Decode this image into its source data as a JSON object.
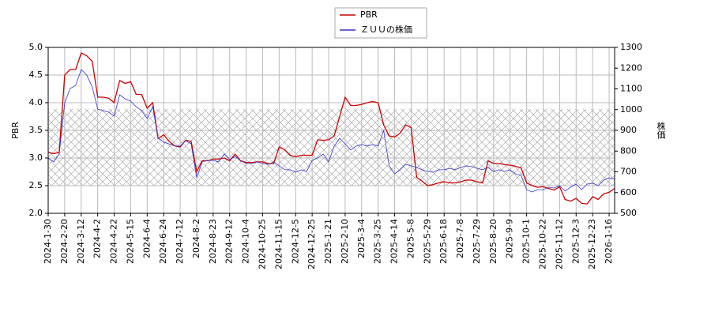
{
  "chart_data": {
    "type": "line",
    "categories": [
      "2024-1-30",
      null,
      null,
      "2024-2-20",
      null,
      null,
      "2024-3-12",
      null,
      null,
      "2024-4-2",
      null,
      null,
      "2024-4-22",
      null,
      null,
      "2024-5-15",
      null,
      null,
      "2024-6-4",
      null,
      null,
      "2024-6-24",
      null,
      null,
      "2024-7-12",
      null,
      null,
      "2024-8-2",
      null,
      null,
      "2024-8-23",
      null,
      null,
      "2024-9-12",
      null,
      null,
      "2024-10-4",
      null,
      null,
      "2024-10-25",
      null,
      null,
      "2024-11-15",
      null,
      null,
      "2024-12-5",
      null,
      null,
      "2024-12-25",
      null,
      null,
      "2025-1-21",
      null,
      null,
      "2025-2-10",
      null,
      null,
      "2025-3-4",
      null,
      null,
      "2025-3-25",
      null,
      null,
      "2025-4-14",
      null,
      null,
      "2025-5-8",
      null,
      null,
      "2025-5-29",
      null,
      null,
      "2025-6-18",
      null,
      null,
      "2025-7-8",
      null,
      null,
      "2025-7-29",
      null,
      null,
      "2025-8-20",
      null,
      null,
      "2025-9-9",
      null,
      null,
      "2025-10-1",
      null,
      null,
      "2025-10-22",
      null,
      null,
      "2025-11-12",
      null,
      null,
      "2025-12-3",
      null,
      null,
      "2025-12-23",
      null,
      null,
      "2026-1-16",
      null
    ],
    "series": [
      {
        "name": "PBR",
        "color": "#cc0000",
        "values": [
          3.1,
          3.08,
          3.1,
          4.5,
          4.6,
          4.6,
          4.9,
          4.85,
          4.75,
          4.1,
          4.1,
          4.08,
          4.0,
          4.4,
          4.35,
          4.38,
          4.15,
          4.15,
          3.9,
          4.0,
          3.35,
          3.42,
          3.3,
          3.22,
          3.2,
          3.32,
          3.3,
          2.75,
          2.95,
          2.95,
          2.98,
          2.98,
          3.0,
          2.95,
          3.07,
          2.95,
          2.92,
          2.92,
          2.93,
          2.93,
          2.9,
          2.9,
          3.2,
          3.15,
          3.05,
          3.02,
          3.05,
          3.05,
          3.05,
          3.33,
          3.32,
          3.33,
          3.4,
          3.75,
          4.1,
          3.95,
          3.95,
          3.97,
          4.0,
          4.02,
          4.0,
          3.6,
          3.4,
          3.38,
          3.45,
          3.6,
          3.55,
          2.65,
          2.58,
          2.5,
          2.52,
          2.55,
          2.57,
          2.55,
          2.55,
          2.57,
          2.6,
          2.6,
          2.57,
          2.55,
          2.95,
          2.9,
          2.9,
          2.88,
          2.87,
          2.85,
          2.82,
          2.55,
          2.5,
          2.47,
          2.48,
          2.45,
          2.42,
          2.48,
          2.25,
          2.22,
          2.27,
          2.18,
          2.17,
          2.3,
          2.25,
          2.35,
          2.38,
          2.45
        ]
      },
      {
        "name": "ＺＵＵの株価",
        "color": "#3333cc",
        "axis": "y2",
        "values": [
          767,
          748,
          786,
          1033,
          1102,
          1117,
          1193,
          1167,
          1110,
          1003,
          995,
          988,
          969,
          1071,
          1052,
          1041,
          1014,
          995,
          957,
          1014,
          862,
          843,
          835,
          824,
          824,
          850,
          835,
          671,
          748,
          755,
          755,
          748,
          786,
          759,
          774,
          755,
          740,
          740,
          748,
          740,
          736,
          748,
          729,
          710,
          710,
          698,
          710,
          702,
          755,
          767,
          786,
          748,
          824,
          862,
          835,
          805,
          824,
          831,
          824,
          831,
          824,
          900,
          729,
          690,
          710,
          736,
          729,
          721,
          710,
          702,
          698,
          710,
          710,
          717,
          710,
          721,
          729,
          725,
          717,
          710,
          721,
          702,
          710,
          702,
          710,
          690,
          683,
          614,
          603,
          614,
          614,
          626,
          622,
          633,
          607,
          626,
          641,
          614,
          641,
          645,
          633,
          660,
          671,
          664
        ]
      }
    ],
    "band": [
      2.5,
      3.89
    ],
    "ylabel": "PBR",
    "y2label": "株価",
    "ylim": [
      2,
      5
    ],
    "yticks": [
      {
        "value": 2,
        "label": "2.0"
      },
      2.5,
      {
        "value": 3,
        "label": "3.0"
      },
      3.5,
      {
        "value": 4,
        "label": "4.0"
      },
      4.5,
      {
        "value": 5,
        "label": "5.0"
      }
    ],
    "y2lim": [
      500,
      1300
    ],
    "y2ticks": [
      500,
      600,
      700,
      800,
      900,
      1000,
      1100,
      1200,
      1300
    ],
    "grid": true,
    "legend": "top"
  }
}
